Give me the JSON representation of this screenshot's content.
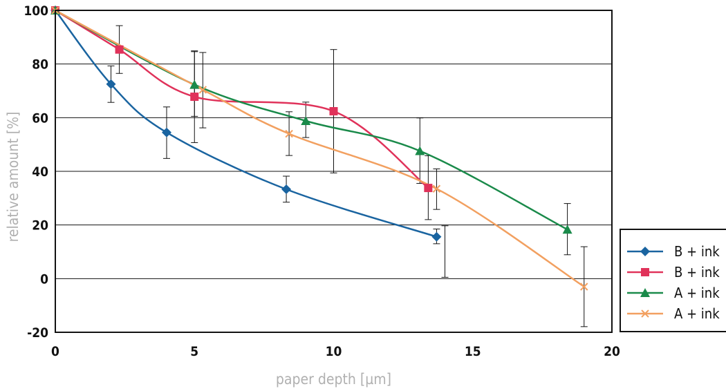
{
  "chart_data": {
    "type": "line",
    "title": "",
    "xlabel": "paper depth [µm]",
    "ylabel": "relative amount [%]",
    "xlim": [
      0,
      20
    ],
    "ylim": [
      -20,
      100
    ],
    "xticks": [
      0,
      5,
      10,
      15,
      20
    ],
    "yticks": [
      -20,
      0,
      20,
      40,
      60,
      80,
      100
    ],
    "grid": "horizontal",
    "legend": "right",
    "series": [
      {
        "name": "B + ink  P",
        "color": "#1a64a0",
        "marker": "diamond",
        "points": [
          {
            "x": 0,
            "y": 100
          },
          {
            "x": 2.0,
            "y": 72.5,
            "low": 65.7,
            "high": 79.3
          },
          {
            "x": 4.0,
            "y": 54.5,
            "low": 44.8,
            "high": 64.0
          },
          {
            "x": 8.3,
            "y": 33.3,
            "low": 28.5,
            "high": 38.2
          },
          {
            "x": 13.7,
            "y": 15.6,
            "low": 13.0,
            "high": 18.5
          }
        ]
      },
      {
        "name": "B + ink  U",
        "color": "#e0325a",
        "marker": "square",
        "points": [
          {
            "x": 0,
            "y": 100
          },
          {
            "x": 2.3,
            "y": 85.4,
            "low": 76.5,
            "high": 94.3
          },
          {
            "x": 5.0,
            "y": 67.8,
            "low": 50.7,
            "high": 84.9
          },
          {
            "x": 10.0,
            "y": 62.4,
            "low": 39.4,
            "high": 85.4
          },
          {
            "x": 13.4,
            "y": 33.8,
            "low": 22.0,
            "high": 45.8
          }
        ]
      },
      {
        "name": "A + ink  P",
        "color": "#1a8a4a",
        "marker": "triangle",
        "points": [
          {
            "x": 0,
            "y": 100
          },
          {
            "x": 5.0,
            "y": 72.3,
            "low": 60.5,
            "high": 84.6
          },
          {
            "x": 9.0,
            "y": 58.8,
            "low": 52.6,
            "high": 65.8
          },
          {
            "x": 13.1,
            "y": 47.6,
            "low": 35.5,
            "high": 59.9
          },
          {
            "x": 18.4,
            "y": 18.3,
            "low": 8.9,
            "high": 28.0
          }
        ]
      },
      {
        "name": "A + ink  U",
        "color": "#f2a060",
        "marker": "x",
        "points": [
          {
            "x": 0,
            "y": 100
          },
          {
            "x": 5.3,
            "y": 70.4,
            "low": 56.2,
            "high": 84.3
          },
          {
            "x": 8.4,
            "y": 54.0,
            "low": 45.9,
            "high": 62.2
          },
          {
            "x": 13.7,
            "y": 33.5,
            "low": 25.8,
            "high": 40.9
          },
          {
            "x": 14.0,
            "y": null,
            "low": 0.5,
            "high": 19.7
          },
          {
            "x": 19.0,
            "y": -3.0,
            "low": -17.9,
            "high": 11.9
          }
        ]
      }
    ]
  }
}
